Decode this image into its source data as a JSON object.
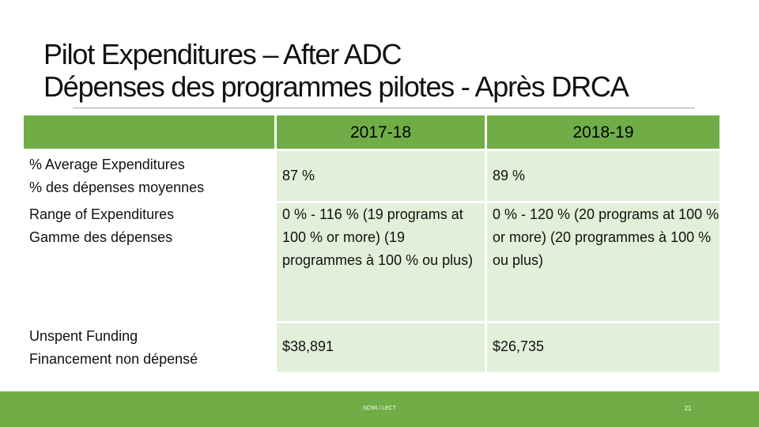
{
  "title": {
    "line1": "Pilot Expenditures – After ADC",
    "line2": "Dépenses des programmes pilotes - Après DRCA"
  },
  "table": {
    "headers": [
      "",
      "2017-18",
      "2018-19"
    ],
    "rows": [
      {
        "label": [
          "% Average Expenditures",
          "% des dépenses moyennes"
        ],
        "v2017": "87 %",
        "v2018": "89 %"
      },
      {
        "label": [
          "Range of Expenditures",
          "Gamme des dépenses"
        ],
        "v2017": "0 % - 116 % (19 programs at 100 % or more) (19 programmes à 100 % ou plus)",
        "v2018": "0 % - 120 % (20 programs at 100 % or more) (20 programmes à 100 % ou plus)"
      },
      {
        "label": [
          "Unspent Funding",
          "Financement non dépensé"
        ],
        "v2017": "$38,891",
        "v2018": "$26,735"
      }
    ]
  },
  "footer": {
    "text": "SCWI / LECT",
    "page": "21"
  },
  "colors": {
    "accent_green": "#70ad47",
    "cell_light_green": "#e2efd9"
  }
}
